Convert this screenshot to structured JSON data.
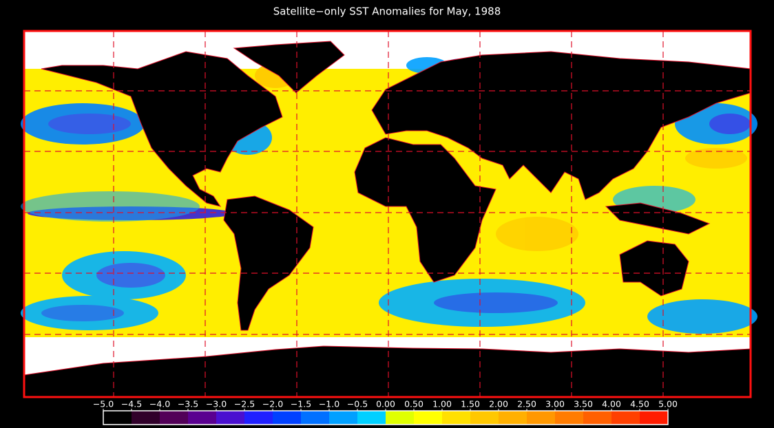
{
  "title": "Satellite−only SST Anomalies for May, 1988",
  "colorbar": {
    "ticks": [
      {
        "value": -5.0,
        "label": "−5.0"
      },
      {
        "value": -4.5,
        "label": "−4.5"
      },
      {
        "value": -4.0,
        "label": "−4.0"
      },
      {
        "value": -3.5,
        "label": "−3.5"
      },
      {
        "value": -3.0,
        "label": "−3.0"
      },
      {
        "value": -2.5,
        "label": "−2.5"
      },
      {
        "value": -2.0,
        "label": "−2.0"
      },
      {
        "value": -1.5,
        "label": "−1.5"
      },
      {
        "value": -1.0,
        "label": "−1.0"
      },
      {
        "value": -0.5,
        "label": "−0.5"
      },
      {
        "value": 0.0,
        "label": "0.00"
      },
      {
        "value": 0.5,
        "label": "0.50"
      },
      {
        "value": 1.0,
        "label": "1.00"
      },
      {
        "value": 1.5,
        "label": "1.50"
      },
      {
        "value": 2.0,
        "label": "2.00"
      },
      {
        "value": 2.5,
        "label": "2.50"
      },
      {
        "value": 3.0,
        "label": "3.00"
      },
      {
        "value": 3.5,
        "label": "3.50"
      },
      {
        "value": 4.0,
        "label": "4.00"
      },
      {
        "value": 4.5,
        "label": "4.50"
      },
      {
        "value": 5.0,
        "label": "5.00"
      }
    ],
    "colors": [
      "#000000",
      "#30002a",
      "#520058",
      "#5a0090",
      "#4a10d0",
      "#2020ff",
      "#0040ff",
      "#0070ff",
      "#00a0ff",
      "#00d0ff",
      "#e0ff00",
      "#ffff00",
      "#ffe000",
      "#ffc800",
      "#ffb000",
      "#ff9800",
      "#ff7c00",
      "#ff6000",
      "#ff4000",
      "#ff1c00"
    ]
  }
}
